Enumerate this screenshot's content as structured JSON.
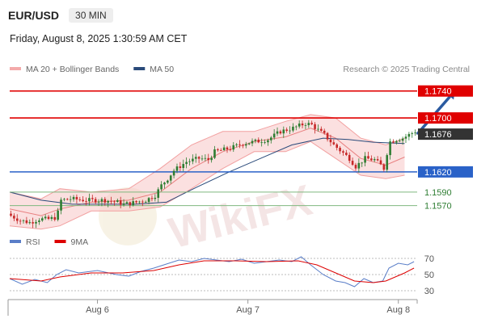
{
  "header": {
    "symbol": "EUR/USD",
    "timeframe": "30 MIN",
    "datetime": "Friday, August 8, 2025 1:30:59 AM CET"
  },
  "credit": "Research © 2025 Trading Central",
  "watermark": "WikiFX",
  "colors": {
    "up": "#2e7d32",
    "down": "#c62828",
    "resistance": "#e00000",
    "pivot": "#2a62c8",
    "support": "#7fb87f",
    "ma50": "#2a4a7a",
    "bollinger": "#f4aaaa",
    "rsi": "#5a7ec8",
    "rsi_ma": "#dd0000"
  },
  "chart_data": [
    {
      "type": "candlestick",
      "legend": [
        {
          "label": "MA 20 + Bollinger Bands",
          "color": "#f4aaaa"
        },
        {
          "label": "MA 50",
          "color": "#2a4a7a"
        }
      ],
      "ylim": [
        1.153,
        1.176
      ],
      "xlim": [
        0,
        130
      ],
      "x_ticks": [
        {
          "x": 28,
          "label": "Aug 6"
        },
        {
          "x": 76,
          "label": "Aug 7"
        },
        {
          "x": 124,
          "label": "Aug 8"
        }
      ],
      "levels": [
        {
          "value": 1.174,
          "label": "1.1740",
          "kind": "resistance"
        },
        {
          "value": 1.17,
          "label": "1.1700",
          "kind": "resistance"
        },
        {
          "value": 1.1676,
          "label": "1.1676",
          "kind": "current"
        },
        {
          "value": 1.162,
          "label": "1.1620",
          "kind": "pivot"
        },
        {
          "value": 1.159,
          "label": "1.1590",
          "kind": "support"
        },
        {
          "value": 1.157,
          "label": "1.1570",
          "kind": "support"
        }
      ],
      "arrow": {
        "from": [
          130,
          1.1676
        ],
        "to": [
          142,
          1.174
        ]
      },
      "ma20_bollinger": [
        [
          0,
          1.1565,
          1.154,
          1.159
        ],
        [
          10,
          1.1555,
          1.1535,
          1.158
        ],
        [
          16,
          1.1565,
          1.154,
          1.1595
        ],
        [
          26,
          1.1575,
          1.1562,
          1.159
        ],
        [
          38,
          1.1578,
          1.1562,
          1.1595
        ],
        [
          48,
          1.159,
          1.1568,
          1.1625
        ],
        [
          58,
          1.1625,
          1.1595,
          1.166
        ],
        [
          68,
          1.165,
          1.1625,
          1.168
        ],
        [
          78,
          1.1665,
          1.165,
          1.168
        ],
        [
          88,
          1.1672,
          1.165,
          1.1695
        ],
        [
          96,
          1.1685,
          1.1665,
          1.1705
        ],
        [
          104,
          1.167,
          1.164,
          1.17
        ],
        [
          112,
          1.164,
          1.1615,
          1.167
        ],
        [
          120,
          1.163,
          1.161,
          1.166
        ],
        [
          126,
          1.1642,
          1.1615,
          1.167
        ]
      ],
      "ma50": [
        [
          0,
          1.159
        ],
        [
          10,
          1.1578
        ],
        [
          20,
          1.1572
        ],
        [
          30,
          1.1572
        ],
        [
          40,
          1.1572
        ],
        [
          50,
          1.1575
        ],
        [
          60,
          1.1598
        ],
        [
          70,
          1.162
        ],
        [
          80,
          1.164
        ],
        [
          90,
          1.166
        ],
        [
          100,
          1.167
        ],
        [
          108,
          1.1668
        ],
        [
          116,
          1.1664
        ],
        [
          126,
          1.1662
        ]
      ],
      "close_anchors": [
        [
          0,
          1.1555
        ],
        [
          3,
          1.1548
        ],
        [
          6,
          1.1545
        ],
        [
          9,
          1.155
        ],
        [
          12,
          1.155
        ],
        [
          14,
          1.1552
        ],
        [
          15,
          1.156
        ],
        [
          16,
          1.1578
        ],
        [
          19,
          1.158
        ],
        [
          24,
          1.1578
        ],
        [
          30,
          1.1578
        ],
        [
          34,
          1.1575
        ],
        [
          36,
          1.1572
        ],
        [
          40,
          1.1575
        ],
        [
          43,
          1.1578
        ],
        [
          46,
          1.1585
        ],
        [
          48,
          1.16
        ],
        [
          50,
          1.161
        ],
        [
          52,
          1.1622
        ],
        [
          56,
          1.1635
        ],
        [
          60,
          1.164
        ],
        [
          63,
          1.1638
        ],
        [
          65,
          1.165
        ],
        [
          70,
          1.1655
        ],
        [
          74,
          1.1662
        ],
        [
          78,
          1.1665
        ],
        [
          82,
          1.1668
        ],
        [
          86,
          1.168
        ],
        [
          90,
          1.1685
        ],
        [
          94,
          1.1692
        ],
        [
          96,
          1.169
        ],
        [
          98,
          1.1682
        ],
        [
          100,
          1.1675
        ],
        [
          103,
          1.166
        ],
        [
          106,
          1.1648
        ],
        [
          108,
          1.164
        ],
        [
          110,
          1.1628
        ],
        [
          113,
          1.164
        ],
        [
          116,
          1.1638
        ],
        [
          118,
          1.163
        ],
        [
          119,
          1.1625
        ],
        [
          120,
          1.1648
        ],
        [
          121,
          1.1665
        ],
        [
          123,
          1.1668
        ],
        [
          125,
          1.167
        ],
        [
          127,
          1.1675
        ],
        [
          129,
          1.168
        ]
      ]
    },
    {
      "type": "line",
      "legend": [
        {
          "label": "RSI",
          "color": "#5a7ec8"
        },
        {
          "label": "9MA",
          "color": "#dd0000"
        }
      ],
      "ylim": [
        22,
        80
      ],
      "y_ticks": [
        70,
        50,
        30
      ],
      "rsi": [
        [
          0,
          45
        ],
        [
          4,
          38
        ],
        [
          8,
          44
        ],
        [
          12,
          40
        ],
        [
          15,
          50
        ],
        [
          18,
          56
        ],
        [
          22,
          52
        ],
        [
          28,
          55
        ],
        [
          34,
          50
        ],
        [
          38,
          48
        ],
        [
          42,
          54
        ],
        [
          46,
          58
        ],
        [
          50,
          63
        ],
        [
          54,
          68
        ],
        [
          58,
          66
        ],
        [
          62,
          70
        ],
        [
          66,
          68
        ],
        [
          70,
          66
        ],
        [
          74,
          69
        ],
        [
          78,
          64
        ],
        [
          82,
          66
        ],
        [
          86,
          68
        ],
        [
          90,
          66
        ],
        [
          93,
          72
        ],
        [
          96,
          62
        ],
        [
          100,
          50
        ],
        [
          104,
          42
        ],
        [
          107,
          40
        ],
        [
          110,
          35
        ],
        [
          113,
          45
        ],
        [
          116,
          40
        ],
        [
          119,
          42
        ],
        [
          121,
          58
        ],
        [
          124,
          64
        ],
        [
          127,
          62
        ],
        [
          129,
          66
        ]
      ],
      "ma9": [
        [
          0,
          45
        ],
        [
          10,
          42
        ],
        [
          16,
          47
        ],
        [
          26,
          52
        ],
        [
          36,
          52
        ],
        [
          46,
          55
        ],
        [
          54,
          62
        ],
        [
          62,
          67
        ],
        [
          72,
          67
        ],
        [
          82,
          66
        ],
        [
          92,
          67
        ],
        [
          98,
          62
        ],
        [
          104,
          52
        ],
        [
          110,
          42
        ],
        [
          116,
          40
        ],
        [
          120,
          42
        ],
        [
          126,
          52
        ],
        [
          129,
          58
        ]
      ]
    }
  ]
}
